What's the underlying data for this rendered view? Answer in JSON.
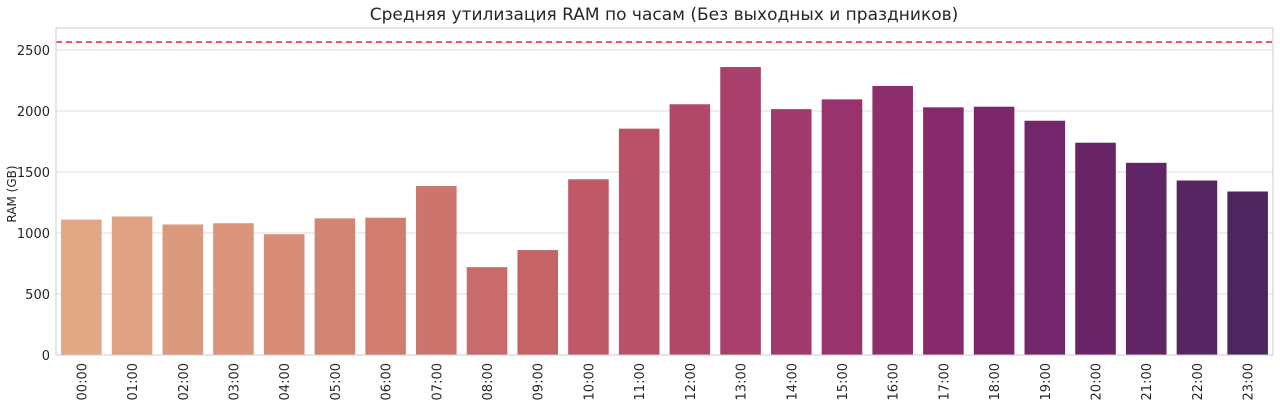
{
  "chart_data": {
    "type": "bar",
    "title": "Средняя утилизация RAM по часам (Без выходных и праздников)",
    "xlabel": "",
    "ylabel": "RAM (GB)",
    "ylim": [
      0,
      2680
    ],
    "yticks": [
      0,
      500,
      1000,
      1500,
      2000,
      2500
    ],
    "grid": true,
    "categories": [
      "00:00",
      "01:00",
      "02:00",
      "03:00",
      "04:00",
      "05:00",
      "06:00",
      "07:00",
      "08:00",
      "09:00",
      "10:00",
      "11:00",
      "12:00",
      "13:00",
      "14:00",
      "15:00",
      "16:00",
      "17:00",
      "18:00",
      "19:00",
      "20:00",
      "21:00",
      "22:00",
      "23:00"
    ],
    "values": [
      1110,
      1135,
      1070,
      1080,
      990,
      1120,
      1125,
      1385,
      720,
      860,
      1440,
      1855,
      2055,
      2360,
      2015,
      2095,
      2205,
      2030,
      2035,
      1920,
      1740,
      1575,
      1430,
      1340
    ],
    "reference_line": {
      "value": 2565,
      "color": "#e8363c",
      "style": "dashed"
    },
    "colors": [
      "#e0a885",
      "#dea182",
      "#db9a7e",
      "#d9947b",
      "#d68c77",
      "#d38574",
      "#d07d70",
      "#cd756d",
      "#c96b6a",
      "#c56367",
      "#c05967",
      "#b95168",
      "#b14869",
      "#a9406b",
      "#a1396c",
      "#98336d",
      "#8f2e6d",
      "#862a6c",
      "#7c276b",
      "#732669",
      "#692567",
      "#5f2564",
      "#562661",
      "#4d265d"
    ]
  }
}
